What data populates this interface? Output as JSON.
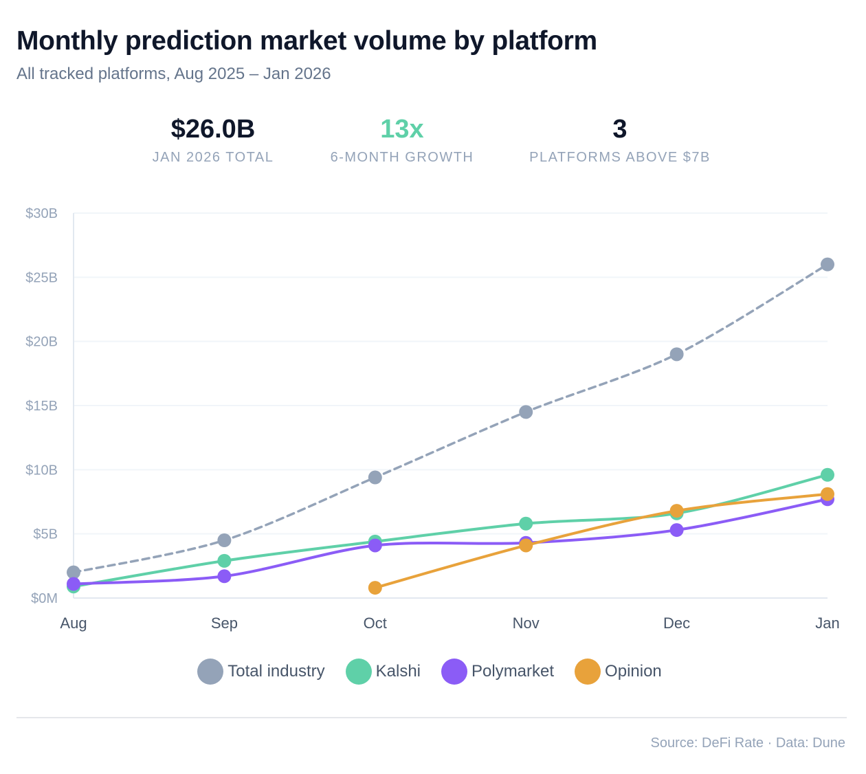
{
  "header": {
    "title": "Monthly prediction market volume by platform",
    "subtitle": "All tracked platforms, Aug 2025 – Jan 2026"
  },
  "stats": [
    {
      "value": "$26.0B",
      "label": "JAN 2026 TOTAL",
      "color": "#0f172a"
    },
    {
      "value": "13x",
      "label": "6-MONTH GROWTH",
      "color": "#5fd0a8"
    },
    {
      "value": "3",
      "label": "PLATFORMS ABOVE $7B",
      "color": "#0f172a"
    }
  ],
  "chart_data": {
    "type": "line",
    "categories": [
      "Aug",
      "Sep",
      "Oct",
      "Nov",
      "Dec",
      "Jan"
    ],
    "ylim": [
      0,
      30
    ],
    "yticks": [
      0,
      5,
      10,
      15,
      20,
      25,
      30
    ],
    "ytick_labels": [
      "$0M",
      "$5B",
      "$10B",
      "$15B",
      "$20B",
      "$25B",
      "$30B"
    ],
    "y_unit": "$B",
    "grid": true,
    "legend_position": "bottom",
    "series": [
      {
        "name": "Total industry",
        "color": "#94a3b8",
        "dashed": true,
        "values": [
          2.0,
          4.5,
          9.4,
          14.5,
          19.0,
          26.0
        ]
      },
      {
        "name": "Kalshi",
        "color": "#5fd0a8",
        "dashed": false,
        "values": [
          0.9,
          2.9,
          4.4,
          5.8,
          6.6,
          9.6
        ]
      },
      {
        "name": "Polymarket",
        "color": "#8b5cf6",
        "dashed": false,
        "values": [
          1.1,
          1.7,
          4.1,
          4.3,
          5.3,
          7.7
        ]
      },
      {
        "name": "Opinion",
        "color": "#e8a23b",
        "dashed": false,
        "values": [
          null,
          null,
          0.8,
          4.1,
          6.8,
          8.1
        ]
      }
    ]
  },
  "footer": {
    "source": "Source: DeFi Rate · Data: Dune"
  }
}
